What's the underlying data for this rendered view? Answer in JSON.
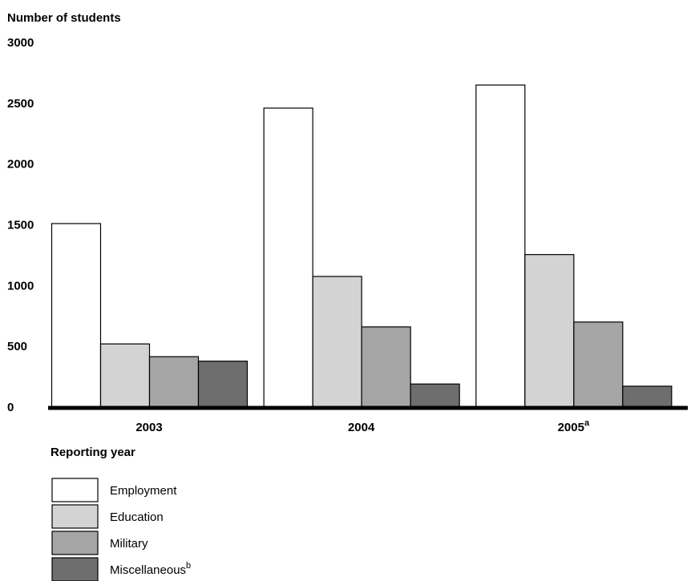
{
  "chart_data": {
    "type": "bar",
    "ylabel": "Number of students",
    "xlabel": "Reporting year",
    "ylim": [
      0,
      3000
    ],
    "y_ticks": [
      "0",
      "500",
      "1000",
      "1500",
      "2000",
      "2500",
      "3000"
    ],
    "categories": [
      {
        "label": "2003",
        "sup": ""
      },
      {
        "label": "2004",
        "sup": ""
      },
      {
        "label": "2005",
        "sup": "a"
      }
    ],
    "series": [
      {
        "name": "Employment",
        "sup": "",
        "color": "#ffffff",
        "values": [
          1510,
          2460,
          2650
        ]
      },
      {
        "name": "Education",
        "sup": "",
        "color": "#d3d3d3",
        "values": [
          520,
          1075,
          1255
        ]
      },
      {
        "name": "Military",
        "sup": "",
        "color": "#a5a5a5",
        "values": [
          415,
          660,
          700
        ]
      },
      {
        "name": "Miscellaneous",
        "sup": "b",
        "color": "#6e6e6e",
        "values": [
          378,
          190,
          172
        ]
      }
    ],
    "grid": false,
    "legend_position": "bottom-left"
  }
}
